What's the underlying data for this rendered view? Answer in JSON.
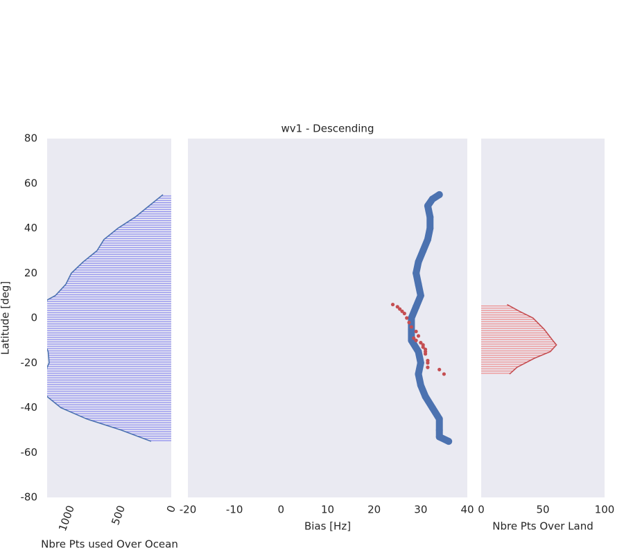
{
  "chart_data": [
    {
      "type": "area",
      "xlabel": "Nbre Pts used Over Ocean",
      "color": "#4c72b0",
      "fill": "#8888ee",
      "xlim": [
        1225,
        0
      ],
      "xticks": [
        1000,
        500,
        0
      ],
      "ylabel": "Latitude [deg]",
      "ylim": [
        -80,
        80
      ],
      "yticks": [
        -80,
        -60,
        -40,
        -20,
        0,
        20,
        40,
        60,
        80
      ],
      "y": [
        55,
        50,
        45,
        40,
        35,
        30,
        25,
        20,
        15,
        10,
        8,
        0,
        -10,
        -15,
        -20,
        -22,
        -30,
        -35,
        -40,
        -45,
        -50,
        -55
      ],
      "x": [
        82,
        219,
        356,
        527,
        664,
        733,
        870,
        986,
        1041,
        1144,
        1226,
        1260,
        1260,
        1215,
        1205,
        1225,
        1260,
        1226,
        1089,
        836,
        493,
        199
      ]
    },
    {
      "type": "scatter",
      "title": "wv1 - Descending",
      "xlabel": "Bias [Hz]",
      "xlim": [
        -20,
        40
      ],
      "xticks": [
        -20,
        -10,
        0,
        10,
        20,
        30,
        40
      ],
      "ylim": [
        -80,
        80
      ],
      "series": [
        {
          "color": "#4c72b0",
          "connected": true,
          "y": [
            55,
            53,
            50,
            45,
            40,
            35,
            30,
            25,
            20,
            15,
            10,
            5,
            0,
            -5,
            -10,
            -15,
            -20,
            -25,
            -30,
            -35,
            -40,
            -45,
            -50,
            -53,
            -55
          ],
          "x": [
            34,
            32.5,
            31.5,
            32,
            32,
            31.5,
            30.5,
            29.5,
            29,
            29.5,
            30,
            29,
            28,
            28,
            28,
            29.5,
            30,
            29.5,
            30,
            31,
            32.5,
            34,
            34,
            34,
            36
          ]
        },
        {
          "color": "#c44e52",
          "connected": false,
          "y": [
            6,
            5,
            4,
            3,
            2,
            0,
            -2,
            -4,
            -6,
            -8,
            -9,
            -10,
            -11,
            -12,
            -13,
            -14,
            -15,
            -16,
            -19,
            -20,
            -22,
            -23,
            -25
          ],
          "x": [
            24,
            25,
            25.5,
            26,
            26.5,
            27,
            27.5,
            28,
            29,
            29.5,
            28.5,
            29,
            30,
            30.5,
            30.5,
            31,
            31,
            31,
            31.5,
            31.5,
            31.5,
            34,
            35
          ]
        }
      ]
    },
    {
      "type": "area",
      "xlabel": "Nbre Pts Over Land",
      "color": "#c44e52",
      "fill": "#ee8888",
      "xlim": [
        0,
        100
      ],
      "xticks": [
        0,
        50,
        100
      ],
      "ylim": [
        -80,
        80
      ],
      "y": [
        6,
        3,
        0,
        -5,
        -10,
        -12,
        -15,
        -18,
        -22,
        -25
      ],
      "x": [
        21,
        31,
        42,
        51,
        58,
        61,
        56,
        43,
        29,
        23
      ]
    }
  ]
}
